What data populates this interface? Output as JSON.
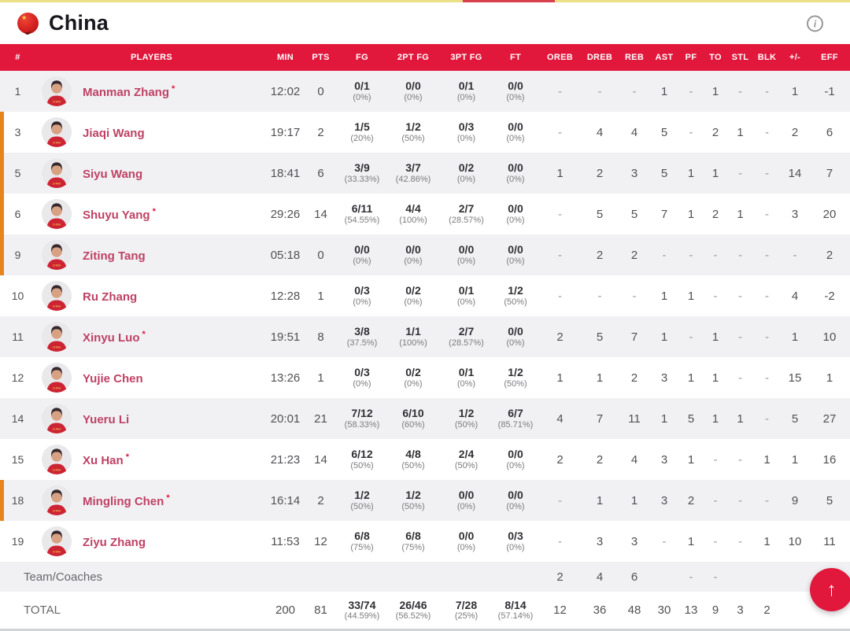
{
  "page": {
    "title_team": "China"
  },
  "icons": {
    "team_logo": "china-red-ball",
    "info": "i",
    "scroll_to_top": "↑"
  },
  "colors": {
    "header_red": "#e1173c",
    "on_court_orange": "#e8831d",
    "player_name_pink": "#bf4265",
    "row_stripe_gray": "#f1f1f3",
    "top_strip_yellow": "#ece086",
    "top_strip_red": "#d8404e"
  },
  "table": {
    "columns": [
      "#",
      "PLAYERS",
      "MIN",
      "PTS",
      "FG",
      "2PT FG",
      "3PT FG",
      "FT",
      "OREB",
      "DREB",
      "REB",
      "AST",
      "PF",
      "TO",
      "STL",
      "BLK",
      "+/-",
      "EFF"
    ],
    "starter_marker": "*",
    "players": [
      {
        "num": "1",
        "name": "Manman Zhang",
        "starter": true,
        "on_court": false,
        "min": "12:02",
        "pts": "0",
        "fg": "0/1",
        "fg_pct": "(0%)",
        "p2": "0/0",
        "p2_pct": "(0%)",
        "p3": "0/1",
        "p3_pct": "(0%)",
        "ft": "0/0",
        "ft_pct": "(0%)",
        "oreb": "-",
        "dreb": "-",
        "reb": "-",
        "ast": "1",
        "pf": "-",
        "to": "1",
        "stl": "-",
        "blk": "-",
        "pm": "1",
        "eff": "-1"
      },
      {
        "num": "3",
        "name": "Jiaqi Wang",
        "starter": false,
        "on_court": true,
        "min": "19:17",
        "pts": "2",
        "fg": "1/5",
        "fg_pct": "(20%)",
        "p2": "1/2",
        "p2_pct": "(50%)",
        "p3": "0/3",
        "p3_pct": "(0%)",
        "ft": "0/0",
        "ft_pct": "(0%)",
        "oreb": "-",
        "dreb": "4",
        "reb": "4",
        "ast": "5",
        "pf": "-",
        "to": "2",
        "stl": "1",
        "blk": "-",
        "pm": "2",
        "eff": "6"
      },
      {
        "num": "5",
        "name": "Siyu Wang",
        "starter": false,
        "on_court": true,
        "min": "18:41",
        "pts": "6",
        "fg": "3/9",
        "fg_pct": "(33.33%)",
        "p2": "3/7",
        "p2_pct": "(42.86%)",
        "p3": "0/2",
        "p3_pct": "(0%)",
        "ft": "0/0",
        "ft_pct": "(0%)",
        "oreb": "1",
        "dreb": "2",
        "reb": "3",
        "ast": "5",
        "pf": "1",
        "to": "1",
        "stl": "-",
        "blk": "-",
        "pm": "14",
        "eff": "7"
      },
      {
        "num": "6",
        "name": "Shuyu Yang",
        "starter": true,
        "on_court": true,
        "min": "29:26",
        "pts": "14",
        "fg": "6/11",
        "fg_pct": "(54.55%)",
        "p2": "4/4",
        "p2_pct": "(100%)",
        "p3": "2/7",
        "p3_pct": "(28.57%)",
        "ft": "0/0",
        "ft_pct": "(0%)",
        "oreb": "-",
        "dreb": "5",
        "reb": "5",
        "ast": "7",
        "pf": "1",
        "to": "2",
        "stl": "1",
        "blk": "-",
        "pm": "3",
        "eff": "20"
      },
      {
        "num": "9",
        "name": "Ziting Tang",
        "starter": false,
        "on_court": true,
        "min": "05:18",
        "pts": "0",
        "fg": "0/0",
        "fg_pct": "(0%)",
        "p2": "0/0",
        "p2_pct": "(0%)",
        "p3": "0/0",
        "p3_pct": "(0%)",
        "ft": "0/0",
        "ft_pct": "(0%)",
        "oreb": "-",
        "dreb": "2",
        "reb": "2",
        "ast": "-",
        "pf": "-",
        "to": "-",
        "stl": "-",
        "blk": "-",
        "pm": "-",
        "eff": "2"
      },
      {
        "num": "10",
        "name": "Ru Zhang",
        "starter": false,
        "on_court": false,
        "min": "12:28",
        "pts": "1",
        "fg": "0/3",
        "fg_pct": "(0%)",
        "p2": "0/2",
        "p2_pct": "(0%)",
        "p3": "0/1",
        "p3_pct": "(0%)",
        "ft": "1/2",
        "ft_pct": "(50%)",
        "oreb": "-",
        "dreb": "-",
        "reb": "-",
        "ast": "1",
        "pf": "1",
        "to": "-",
        "stl": "-",
        "blk": "-",
        "pm": "4",
        "eff": "-2"
      },
      {
        "num": "11",
        "name": "Xinyu Luo",
        "starter": true,
        "on_court": false,
        "min": "19:51",
        "pts": "8",
        "fg": "3/8",
        "fg_pct": "(37.5%)",
        "p2": "1/1",
        "p2_pct": "(100%)",
        "p3": "2/7",
        "p3_pct": "(28.57%)",
        "ft": "0/0",
        "ft_pct": "(0%)",
        "oreb": "2",
        "dreb": "5",
        "reb": "7",
        "ast": "1",
        "pf": "-",
        "to": "1",
        "stl": "-",
        "blk": "-",
        "pm": "1",
        "eff": "10"
      },
      {
        "num": "12",
        "name": "Yujie Chen",
        "starter": false,
        "on_court": false,
        "min": "13:26",
        "pts": "1",
        "fg": "0/3",
        "fg_pct": "(0%)",
        "p2": "0/2",
        "p2_pct": "(0%)",
        "p3": "0/1",
        "p3_pct": "(0%)",
        "ft": "1/2",
        "ft_pct": "(50%)",
        "oreb": "1",
        "dreb": "1",
        "reb": "2",
        "ast": "3",
        "pf": "1",
        "to": "1",
        "stl": "-",
        "blk": "-",
        "pm": "15",
        "eff": "1"
      },
      {
        "num": "14",
        "name": "Yueru Li",
        "starter": false,
        "on_court": false,
        "min": "20:01",
        "pts": "21",
        "fg": "7/12",
        "fg_pct": "(58.33%)",
        "p2": "6/10",
        "p2_pct": "(60%)",
        "p3": "1/2",
        "p3_pct": "(50%)",
        "ft": "6/7",
        "ft_pct": "(85.71%)",
        "oreb": "4",
        "dreb": "7",
        "reb": "11",
        "ast": "1",
        "pf": "5",
        "to": "1",
        "stl": "1",
        "blk": "-",
        "pm": "5",
        "eff": "27"
      },
      {
        "num": "15",
        "name": "Xu Han",
        "starter": true,
        "on_court": false,
        "min": "21:23",
        "pts": "14",
        "fg": "6/12",
        "fg_pct": "(50%)",
        "p2": "4/8",
        "p2_pct": "(50%)",
        "p3": "2/4",
        "p3_pct": "(50%)",
        "ft": "0/0",
        "ft_pct": "(0%)",
        "oreb": "2",
        "dreb": "2",
        "reb": "4",
        "ast": "3",
        "pf": "1",
        "to": "-",
        "stl": "-",
        "blk": "1",
        "pm": "1",
        "eff": "16"
      },
      {
        "num": "18",
        "name": "Mingling Chen",
        "starter": true,
        "on_court": true,
        "min": "16:14",
        "pts": "2",
        "fg": "1/2",
        "fg_pct": "(50%)",
        "p2": "1/2",
        "p2_pct": "(50%)",
        "p3": "0/0",
        "p3_pct": "(0%)",
        "ft": "0/0",
        "ft_pct": "(0%)",
        "oreb": "-",
        "dreb": "1",
        "reb": "1",
        "ast": "3",
        "pf": "2",
        "to": "-",
        "stl": "-",
        "blk": "-",
        "pm": "9",
        "eff": "5"
      },
      {
        "num": "19",
        "name": "Ziyu Zhang",
        "starter": false,
        "on_court": false,
        "min": "11:53",
        "pts": "12",
        "fg": "6/8",
        "fg_pct": "(75%)",
        "p2": "6/8",
        "p2_pct": "(75%)",
        "p3": "0/0",
        "p3_pct": "(0%)",
        "ft": "0/3",
        "ft_pct": "(0%)",
        "oreb": "-",
        "dreb": "3",
        "reb": "3",
        "ast": "-",
        "pf": "1",
        "to": "-",
        "stl": "-",
        "blk": "1",
        "pm": "10",
        "eff": "11"
      }
    ],
    "team_row": {
      "label": "Team/Coaches",
      "oreb": "2",
      "dreb": "4",
      "reb": "6",
      "ast": "",
      "pf": "-",
      "to": "-",
      "stl": "",
      "blk": "",
      "pm": "",
      "eff": ""
    },
    "total_row": {
      "label": "TOTAL",
      "min": "200",
      "pts": "81",
      "fg": "33/74",
      "fg_pct": "(44.59%)",
      "p2": "26/46",
      "p2_pct": "(56.52%)",
      "p3": "7/28",
      "p3_pct": "(25%)",
      "ft": "8/14",
      "ft_pct": "(57.14%)",
      "oreb": "12",
      "dreb": "36",
      "reb": "48",
      "ast": "30",
      "pf": "13",
      "to": "9",
      "stl": "3",
      "blk": "2",
      "pm": "",
      "eff": ""
    }
  }
}
